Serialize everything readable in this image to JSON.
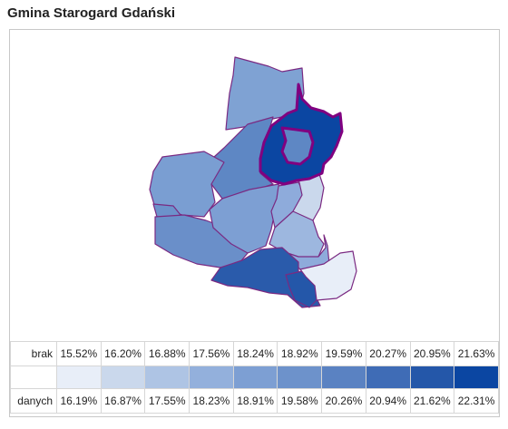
{
  "title": "Gmina Starogard Gdański",
  "legend": {
    "top_label": "brak",
    "bottom_label": "danych",
    "lower_bounds": [
      "15.52%",
      "16.20%",
      "16.88%",
      "17.56%",
      "18.24%",
      "18.92%",
      "19.59%",
      "20.27%",
      "20.95%",
      "21.63%"
    ],
    "upper_bounds": [
      "16.19%",
      "16.87%",
      "17.55%",
      "18.23%",
      "18.91%",
      "19.58%",
      "20.26%",
      "20.94%",
      "21.62%",
      "22.31%"
    ],
    "colors": [
      "#e8eef8",
      "#cad8ec",
      "#aec4e4",
      "#93b0dc",
      "#7d9fd3",
      "#6d92cb",
      "#5a82c2",
      "#3f6cb6",
      "#2457a9",
      "#0b46a2"
    ]
  },
  "map": {
    "border_color": "#7a2a82",
    "highlight_border_color": "#800080"
  }
}
